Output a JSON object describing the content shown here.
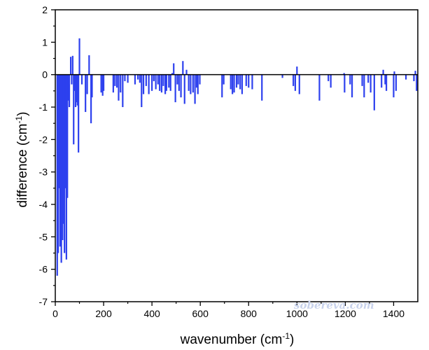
{
  "chart_data": {
    "type": "bar",
    "xlabel": "wavenumber (cm",
    "xlabel_sup": "-1",
    "xlabel_end": ")",
    "ylabel": "difference (cm",
    "ylabel_sup": "-1",
    "ylabel_end": ")",
    "xlim": [
      0,
      1500
    ],
    "ylim": [
      -7,
      2
    ],
    "x_ticks": [
      0,
      200,
      400,
      600,
      800,
      1000,
      1200,
      1400
    ],
    "x_tick_labels": [
      "0",
      "200",
      "400",
      "600",
      "800",
      "1000",
      "1200",
      "1400"
    ],
    "y_ticks": [
      -7,
      -6,
      -5,
      -4,
      -3,
      -2,
      -1,
      0,
      1,
      2
    ],
    "y_tick_labels": [
      "-7",
      "-6",
      "-5",
      "-4",
      "-3",
      "-2",
      "-1",
      "0",
      "1",
      "2"
    ],
    "grid": false,
    "zero_line": true,
    "bar_color": "#2d40ee",
    "series": [
      {
        "x": [
          8,
          12,
          16,
          20,
          25,
          30,
          35,
          38,
          42,
          46,
          50,
          55,
          58,
          64,
          68,
          72,
          76,
          80,
          84,
          88,
          92,
          96,
          100,
          110,
          125,
          132,
          140,
          148,
          152,
          190,
          196,
          200,
          240,
          247,
          255,
          262,
          270,
          279,
          288,
          300,
          330,
          342,
          350,
          357,
          365,
          376,
          387,
          400,
          408,
          416,
          425,
          432,
          440,
          447,
          455,
          460,
          470,
          477,
          484,
          490,
          497,
          505,
          512,
          520,
          528,
          535,
          543,
          552,
          560,
          570,
          578,
          585,
          590,
          598,
          690,
          697,
          726,
          733,
          740,
          750,
          757,
          765,
          773,
          790,
          800,
          815,
          855,
          940,
          985,
          993,
          1000,
          1010,
          1093,
          1130,
          1140,
          1195,
          1197,
          1220,
          1228,
          1270,
          1278,
          1295,
          1305,
          1320,
          1350,
          1357,
          1365,
          1370,
          1400,
          1403,
          1410,
          1451,
          1484,
          1490,
          1495
        ],
        "values": [
          -6.2,
          -5.5,
          -3.5,
          -5.3,
          -5.8,
          -5.1,
          -4.6,
          -5.5,
          -3.5,
          -5.7,
          -3.8,
          -0.8,
          -1.0,
          0.55,
          -0.3,
          0.58,
          -2.15,
          -0.5,
          -1.0,
          -0.85,
          -0.95,
          -2.4,
          1.12,
          -0.3,
          -1.15,
          -0.6,
          0.6,
          -1.5,
          -0.7,
          -0.55,
          -0.65,
          -0.5,
          -0.55,
          -0.35,
          -0.4,
          -0.8,
          -0.55,
          -1.0,
          -0.2,
          -0.25,
          -0.3,
          -0.15,
          -0.25,
          -1.0,
          -0.6,
          -0.35,
          -0.6,
          -0.5,
          -0.2,
          -0.45,
          -0.3,
          -0.5,
          -0.55,
          -0.35,
          -0.6,
          -0.5,
          -0.4,
          -0.5,
          0.05,
          0.35,
          -0.85,
          -0.3,
          -0.5,
          -0.7,
          0.42,
          -0.9,
          0.15,
          -0.5,
          -0.6,
          -0.55,
          -0.9,
          -0.4,
          -0.6,
          -0.3,
          -0.7,
          -0.3,
          -0.45,
          -0.6,
          -0.55,
          -0.4,
          -0.3,
          -0.45,
          -0.6,
          -0.35,
          -0.4,
          -0.45,
          -0.8,
          -0.1,
          -0.35,
          -0.5,
          0.25,
          -0.6,
          -0.8,
          -0.2,
          -0.4,
          0.05,
          -0.55,
          -0.3,
          -0.7,
          -0.35,
          -0.7,
          -0.25,
          -0.55,
          -1.1,
          -0.4,
          0.15,
          -0.3,
          -0.5,
          -0.7,
          0.1,
          -0.5,
          -0.15,
          -0.2,
          0.12,
          -0.5
        ]
      }
    ]
  },
  "watermark": "sobereva.com"
}
